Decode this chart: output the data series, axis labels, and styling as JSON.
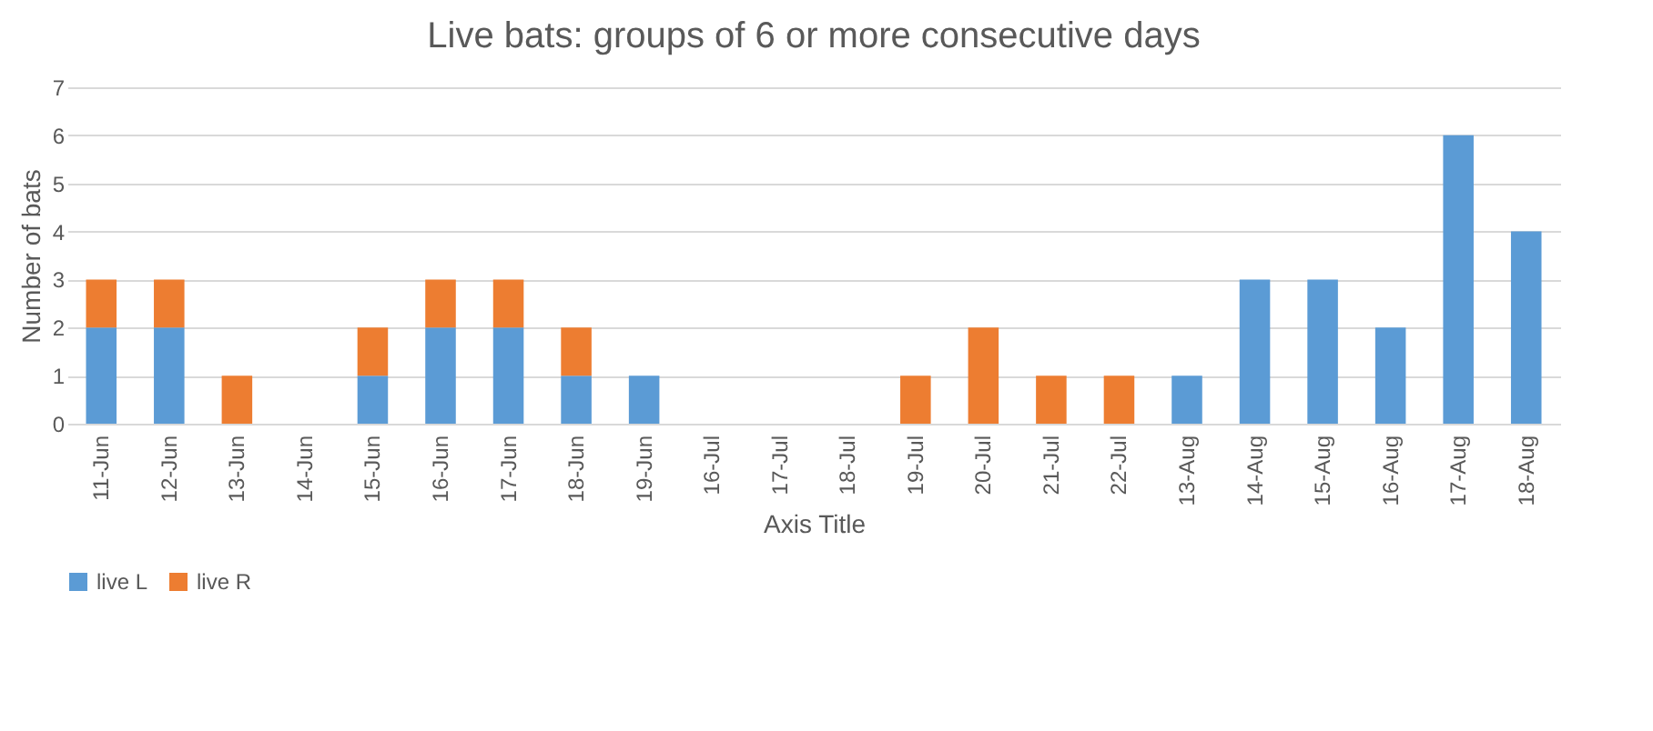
{
  "chart_data": {
    "type": "bar",
    "title": "Live bats: groups of 6 or more consecutive days",
    "xlabel": "Axis Title",
    "ylabel": "Number of bats",
    "categories": [
      "11-Jun",
      "12-Jun",
      "13-Jun",
      "14-Jun",
      "15-Jun",
      "16-Jun",
      "17-Jun",
      "18-Jun",
      "19-Jun",
      "16-Jul",
      "17-Jul",
      "18-Jul",
      "19-Jul",
      "20-Jul",
      "21-Jul",
      "22-Jul",
      "13-Aug",
      "14-Aug",
      "15-Aug",
      "16-Aug",
      "17-Aug",
      "18-Aug"
    ],
    "series": [
      {
        "name": "live L",
        "color": "#5b9bd5",
        "values": [
          2,
          2,
          0,
          0,
          1,
          2,
          2,
          1,
          1,
          0,
          0,
          0,
          0,
          0,
          0,
          0,
          1,
          3,
          3,
          2,
          6,
          4
        ]
      },
      {
        "name": "live R",
        "color": "#ed7d31",
        "values": [
          1,
          1,
          1,
          0,
          1,
          1,
          1,
          1,
          0,
          0,
          0,
          0,
          1,
          2,
          1,
          1,
          0,
          0,
          0,
          0,
          0,
          0
        ]
      }
    ],
    "stacked": true,
    "ylim": [
      0,
      7
    ],
    "yticks": [
      0,
      1,
      2,
      3,
      4,
      5,
      6,
      7
    ],
    "grid": "y",
    "legend": "bottom"
  }
}
